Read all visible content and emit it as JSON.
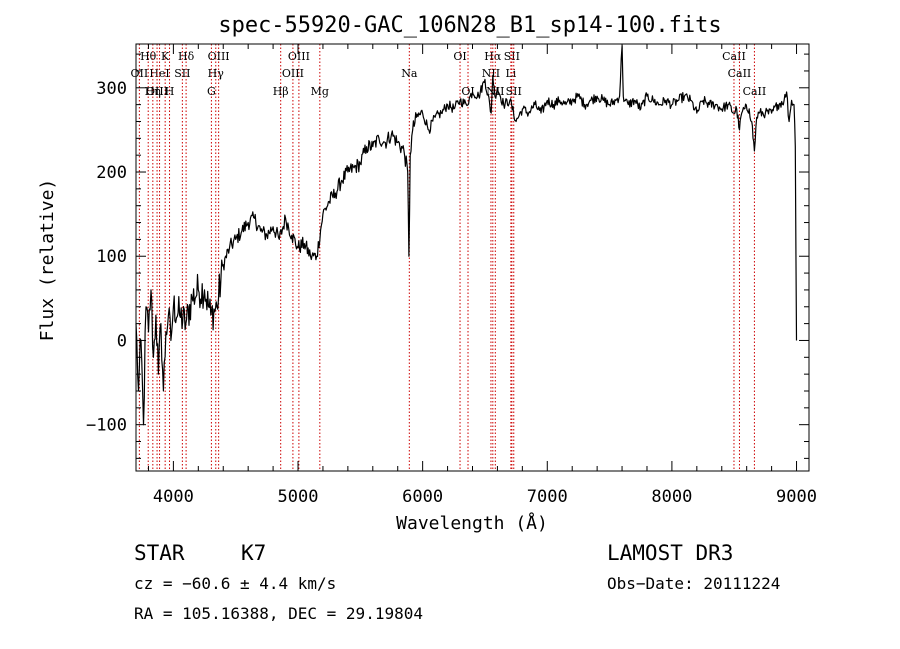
{
  "chart_data": {
    "type": "line",
    "title": "spec-55920-GAC_106N28_B1_sp14-100.fits",
    "xlabel": "Wavelength (Å)",
    "ylabel": "Flux (relative)",
    "xlim": [
      3700,
      9100
    ],
    "ylim": [
      -155,
      352
    ],
    "xticks": [
      {
        "value": 4000,
        "label": "4000"
      },
      {
        "value": 5000,
        "label": "5000"
      },
      {
        "value": 6000,
        "label": "6000"
      },
      {
        "value": 7000,
        "label": "7000"
      },
      {
        "value": 8000,
        "label": "8000"
      },
      {
        "value": 9000,
        "label": "9000"
      }
    ],
    "yticks": [
      {
        "value": -100,
        "label": "−100"
      },
      {
        "value": 0,
        "label": "0"
      },
      {
        "value": 100,
        "label": "100"
      },
      {
        "value": 200,
        "label": "200"
      },
      {
        "value": 300,
        "label": "300"
      }
    ],
    "line_color": "#000000",
    "marker_color": "#cc0000",
    "series": [
      {
        "name": "spectrum",
        "x": [
          3700,
          3720,
          3740,
          3760,
          3780,
          3800,
          3820,
          3840,
          3860,
          3880,
          3900,
          3920,
          3940,
          3960,
          3980,
          4000,
          4050,
          4100,
          4150,
          4200,
          4250,
          4300,
          4350,
          4400,
          4450,
          4500,
          4550,
          4600,
          4650,
          4700,
          4750,
          4800,
          4850,
          4900,
          4950,
          5000,
          5050,
          5100,
          5150,
          5200,
          5250,
          5300,
          5350,
          5400,
          5450,
          5500,
          5550,
          5600,
          5650,
          5700,
          5750,
          5800,
          5850,
          5880,
          5890,
          5900,
          5920,
          5950,
          6000,
          6050,
          6100,
          6150,
          6200,
          6250,
          6300,
          6350,
          6400,
          6450,
          6500,
          6550,
          6563,
          6580,
          6600,
          6650,
          6700,
          6750,
          6800,
          6850,
          6900,
          6950,
          7000,
          7050,
          7100,
          7150,
          7200,
          7250,
          7300,
          7350,
          7400,
          7450,
          7500,
          7550,
          7580,
          7600,
          7610,
          7620,
          7650,
          7700,
          7750,
          7800,
          7850,
          7900,
          7950,
          8000,
          8050,
          8100,
          8150,
          8200,
          8250,
          8300,
          8350,
          8400,
          8450,
          8498,
          8520,
          8542,
          8560,
          8580,
          8620,
          8640,
          8662,
          8680,
          8700,
          8750,
          8800,
          8850,
          8900,
          8920,
          8940,
          8960,
          8980,
          8990,
          9000
        ],
        "y": [
          20,
          -60,
          0,
          -100,
          40,
          10,
          60,
          -20,
          30,
          -40,
          20,
          -60,
          10,
          30,
          0,
          40,
          30,
          20,
          50,
          60,
          60,
          30,
          40,
          90,
          110,
          120,
          130,
          140,
          145,
          130,
          125,
          135,
          120,
          145,
          125,
          110,
          115,
          100,
          100,
          150,
          165,
          175,
          190,
          200,
          205,
          210,
          230,
          230,
          240,
          235,
          245,
          235,
          225,
          200,
          100,
          220,
          250,
          265,
          270,
          250,
          265,
          270,
          280,
          275,
          285,
          280,
          295,
          290,
          310,
          270,
          315,
          290,
          300,
          280,
          285,
          260,
          275,
          270,
          280,
          270,
          285,
          280,
          285,
          280,
          285,
          290,
          280,
          285,
          290,
          285,
          280,
          285,
          290,
          350,
          290,
          285,
          280,
          285,
          275,
          290,
          285,
          280,
          285,
          280,
          285,
          290,
          285,
          270,
          285,
          280,
          280,
          275,
          280,
          270,
          275,
          250,
          270,
          275,
          275,
          260,
          225,
          265,
          270,
          270,
          270,
          280,
          285,
          295,
          260,
          285,
          280,
          230,
          0
        ]
      }
    ],
    "lines": [
      {
        "label": "Hθ",
        "wavelength": 3798,
        "row": 0
      },
      {
        "label": "K",
        "wavelength": 3934,
        "row": 0
      },
      {
        "label": "Hδ",
        "wavelength": 4102,
        "row": 0
      },
      {
        "label": "OIII",
        "wavelength": 4363,
        "row": 0
      },
      {
        "label": "OIII",
        "wavelength": 5007,
        "row": 0
      },
      {
        "label": "OI",
        "wavelength": 6300,
        "row": 0
      },
      {
        "label": "Hα",
        "wavelength": 6563,
        "row": 0
      },
      {
        "label": "SII",
        "wavelength": 6716,
        "row": 0
      },
      {
        "label": "CaII",
        "wavelength": 8498,
        "row": 0
      },
      {
        "label": "OII",
        "wavelength": 3727,
        "row": 1
      },
      {
        "label": "HeI",
        "wavelength": 3889,
        "row": 1
      },
      {
        "label": "SII",
        "wavelength": 4072,
        "row": 1
      },
      {
        "label": "Hγ",
        "wavelength": 4340,
        "row": 1
      },
      {
        "label": "OIII",
        "wavelength": 4959,
        "row": 1
      },
      {
        "label": "Na",
        "wavelength": 5893,
        "row": 1
      },
      {
        "label": "NII",
        "wavelength": 6548,
        "row": 1
      },
      {
        "label": "Li",
        "wavelength": 6708,
        "row": 1
      },
      {
        "label": "CaII",
        "wavelength": 8542,
        "row": 1
      },
      {
        "label": "OIII",
        "wavelength": 3869,
        "row": 2
      },
      {
        "label": "Hη",
        "wavelength": 3835,
        "row": 2
      },
      {
        "label": "H",
        "wavelength": 3969,
        "row": 2
      },
      {
        "label": "G",
        "wavelength": 4305,
        "row": 2
      },
      {
        "label": "Hβ",
        "wavelength": 4861,
        "row": 2
      },
      {
        "label": "Mg",
        "wavelength": 5175,
        "row": 2
      },
      {
        "label": "OI",
        "wavelength": 6364,
        "row": 2
      },
      {
        "label": "NII",
        "wavelength": 6583,
        "row": 2
      },
      {
        "label": "SII",
        "wavelength": 6731,
        "row": 2
      },
      {
        "label": "CaII",
        "wavelength": 8662,
        "row": 2
      }
    ]
  },
  "info": {
    "object_class": "STAR",
    "subclass": "K7",
    "survey": "LAMOST DR3",
    "redshift_text": "cz = −60.6 ± 4.4 km/s",
    "obs_date_text": "Obs−Date: 20111224",
    "coords_text": "RA = 105.16388, DEC =  29.19804"
  }
}
